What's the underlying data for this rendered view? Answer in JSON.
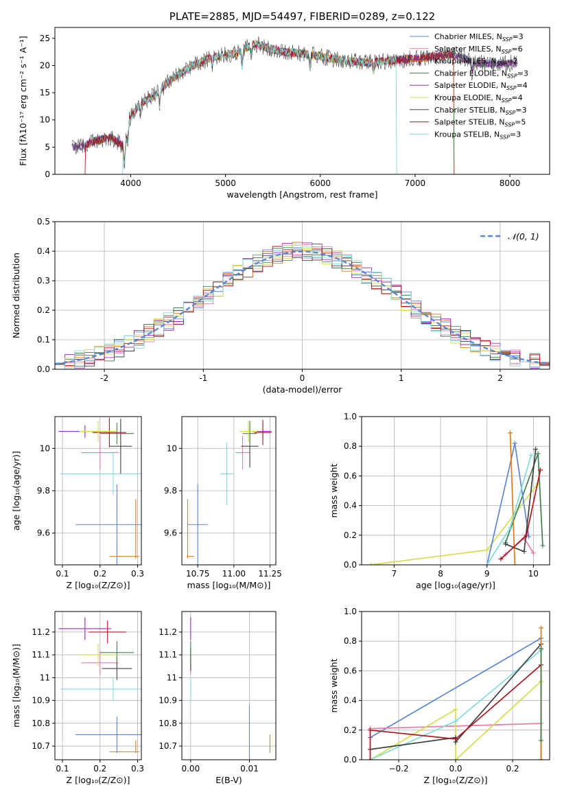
{
  "colors": {
    "chabrier_miles": "#5b86d6",
    "salpeter_miles": "#e879a8",
    "kroupa_miles": "#e07b1a",
    "chabrier_elodie": "#3f7f4f",
    "salpeter_elodie": "#9b29b5",
    "kroupa_elodie": "#d4dc4a",
    "chabrier_stelib": "#404040",
    "salpeter_stelib": "#b0141e",
    "kroupa_stelib": "#7fdcdc",
    "normal": "#5b86d6",
    "grid": "#b0b0b0"
  },
  "chart_data": [
    {
      "id": "spectrum",
      "type": "line",
      "title": "PLATE=2885, MJD=54497, FIBERID=0289, z=0.122",
      "xlabel": "wavelength [Angstrom, rest frame]",
      "ylabel": "Flux [fλ10⁻¹⁷ erg cm⁻² s⁻¹ A⁻¹]",
      "xlim": [
        3200,
        8420
      ],
      "ylim": [
        0,
        27
      ],
      "xticks": [
        4000,
        5000,
        6000,
        7000,
        8000
      ],
      "yticks": [
        0,
        5,
        10,
        15,
        20,
        25
      ],
      "grid": false,
      "legend_position": "upper-right",
      "continuum": [
        [
          3380,
          5
        ],
        [
          3500,
          5.2
        ],
        [
          3650,
          6.3
        ],
        [
          3800,
          6.8
        ],
        [
          3930,
          5
        ],
        [
          3980,
          10
        ],
        [
          4100,
          13
        ],
        [
          4250,
          14.5
        ],
        [
          4400,
          17
        ],
        [
          4600,
          19.5
        ],
        [
          4850,
          21.5
        ],
        [
          5100,
          22.2
        ],
        [
          5300,
          24
        ],
        [
          5600,
          22.5
        ],
        [
          5900,
          22
        ],
        [
          6200,
          21
        ],
        [
          6500,
          20.5
        ],
        [
          6800,
          21
        ],
        [
          7100,
          21.5
        ],
        [
          7400,
          22
        ],
        [
          7650,
          20.5
        ],
        [
          7850,
          20.2
        ],
        [
          8080,
          20.5
        ]
      ],
      "absorption_lines": [
        [
          3934,
          3.5
        ],
        [
          3969,
          3
        ],
        [
          4101,
          2
        ],
        [
          4304,
          3
        ],
        [
          4861,
          1.5
        ],
        [
          5175,
          3
        ],
        [
          5270,
          1.5
        ],
        [
          5893,
          2.5
        ],
        [
          6563,
          1.5
        ],
        [
          7050,
          1
        ],
        [
          7600,
          2
        ]
      ],
      "series": [
        {
          "name": "Chabrier MILES, N",
          "sub": "SSP",
          "suffix": "=3",
          "color_key": "chabrier_miles"
        },
        {
          "name": "Salpeter MILES, N",
          "sub": "SSP",
          "suffix": "=6",
          "color_key": "salpeter_miles"
        },
        {
          "name": "Kroupa MILES, N",
          "sub": "SSP",
          "suffix": "=2",
          "color_key": "kroupa_miles"
        },
        {
          "name": "Chabrier ELODIE, N",
          "sub": "SSP",
          "suffix": "=3",
          "color_key": "chabrier_elodie"
        },
        {
          "name": "Salpeter ELODIE, N",
          "sub": "SSP",
          "suffix": "=4",
          "color_key": "salpeter_elodie"
        },
        {
          "name": "Kroupa ELODIE, N",
          "sub": "SSP",
          "suffix": "=4",
          "color_key": "kroupa_elodie"
        },
        {
          "name": "Chabrier STELIB, N",
          "sub": "SSP",
          "suffix": "=3",
          "color_key": "chabrier_stelib"
        },
        {
          "name": "Salpeter STELIB, N",
          "sub": "SSP",
          "suffix": "=5",
          "color_key": "salpeter_stelib"
        },
        {
          "name": "Kroupa STELIB, N",
          "sub": "SSP",
          "suffix": "=3",
          "color_key": "kroupa_stelib"
        }
      ],
      "model_edges": [
        {
          "color_key": "kroupa_miles",
          "lo": 3520,
          "hi": 7410
        },
        {
          "color_key": "kroupa_elodie",
          "lo": 3920,
          "hi": 6800
        },
        {
          "color_key": "salpeter_stelib",
          "lo": 3520,
          "hi": 7410
        },
        {
          "color_key": "kroupa_stelib",
          "lo": 3920,
          "hi": 6800
        }
      ]
    },
    {
      "id": "residuals",
      "type": "histogram",
      "xlabel": "(data-model)/error",
      "ylabel": "Normed distribution",
      "xlim": [
        -2.5,
        2.5
      ],
      "ylim": [
        0,
        0.5
      ],
      "xticks": [
        -2,
        -1,
        0,
        1,
        2
      ],
      "yticks": [
        0.0,
        0.1,
        0.2,
        0.3,
        0.4,
        0.5
      ],
      "grid": true,
      "bin_width": 0.1,
      "legend": "𝒩(0, 1)",
      "legend_position": "upper-right",
      "reference": {
        "mean": 0,
        "sigma": 1
      }
    },
    {
      "id": "age-vs-Z",
      "type": "errorbar",
      "xlabel": "Z [log₁₀(Z/Z⊙)]",
      "ylabel": "age  [log₁₀(age/yr)]",
      "xlim": [
        0.08,
        0.31
      ],
      "ylim": [
        9.45,
        10.15
      ],
      "xticks": [
        0.1,
        0.2,
        0.3
      ],
      "xtick_labels": [
        "0.1",
        "0.2",
        "0.3"
      ],
      "yticks": [
        9.6,
        9.8,
        10.0
      ],
      "grid": true,
      "points": [
        {
          "color_key": "chabrier_miles",
          "x": 0.245,
          "xerr": 0.11,
          "y": 9.64,
          "yerr": 0.19
        },
        {
          "color_key": "kroupa_miles",
          "x": 0.295,
          "xlo": 0.07,
          "xhi": 0.01,
          "y": 9.49,
          "ylo": 0.01,
          "yhi": 0.27
        },
        {
          "color_key": "kroupa_stelib",
          "x": 0.235,
          "xerr": 0.14,
          "y": 9.88,
          "yerr": 0.1
        },
        {
          "color_key": "salpeter_miles",
          "x": 0.2,
          "xerr": 0.05,
          "y": 9.98,
          "yerr": 0.08
        },
        {
          "color_key": "chabrier_stelib",
          "x": 0.255,
          "xerr": 0.03,
          "y": 10.01,
          "yerr": 0.13
        },
        {
          "color_key": "chabrier_elodie",
          "x": 0.245,
          "xerr": 0.045,
          "y": 10.07,
          "yerr": 0.05
        },
        {
          "color_key": "salpeter_elodie",
          "x": 0.16,
          "xerr": 0.07,
          "y": 10.08,
          "yerr": 0.03
        },
        {
          "color_key": "salpeter_stelib",
          "x": 0.225,
          "xerr": 0.045,
          "y": 10.075,
          "yerr": 0.07
        },
        {
          "color_key": "kroupa_elodie",
          "x": 0.195,
          "xerr": 0.05,
          "y": 10.08,
          "yerr": 0.05
        }
      ]
    },
    {
      "id": "age-vs-mass",
      "type": "errorbar",
      "xlabel": "mass [log₁₀(M/M⊙)]",
      "ylabel": "",
      "xlim": [
        10.64,
        11.29
      ],
      "ylim": [
        9.45,
        10.15
      ],
      "xticks": [
        10.75,
        11.0,
        11.25
      ],
      "xtick_labels": [
        "10.75",
        "11.00",
        "11.25"
      ],
      "yticks": [
        9.6,
        9.8,
        10.0
      ],
      "grid": true,
      "points": [
        {
          "color_key": "chabrier_miles",
          "x": 10.75,
          "xerr": 0.07,
          "y": 9.64,
          "yerr": 0.19
        },
        {
          "color_key": "kroupa_miles",
          "x": 10.68,
          "xlo": 0.005,
          "xhi": 0.045,
          "y": 9.49,
          "ylo": 0.01,
          "yhi": 0.27
        },
        {
          "color_key": "kroupa_stelib",
          "x": 10.95,
          "xerr": 0.045,
          "y": 9.88,
          "yerr": 0.15
        },
        {
          "color_key": "salpeter_miles",
          "x": 11.06,
          "xerr": 0.05,
          "y": 9.98,
          "yerr": 0.08
        },
        {
          "color_key": "chabrier_stelib",
          "x": 11.11,
          "xerr": 0.06,
          "y": 10.01,
          "yerr": 0.1
        },
        {
          "color_key": "chabrier_elodie",
          "x": 11.11,
          "xerr": 0.05,
          "y": 10.07,
          "yerr": 0.06
        },
        {
          "color_key": "salpeter_elodie",
          "x": 11.2,
          "xerr": 0.06,
          "y": 10.08,
          "yerr": 0.04
        },
        {
          "color_key": "salpeter_stelib",
          "x": 11.2,
          "xerr": 0.06,
          "y": 10.075,
          "yerr": 0.06
        },
        {
          "color_key": "kroupa_elodie",
          "x": 11.1,
          "xerr": 0.06,
          "y": 10.08,
          "yerr": 0.05
        }
      ]
    },
    {
      "id": "weight-vs-age",
      "type": "line",
      "xlabel": "age  [log₁₀(age/yr)]",
      "ylabel": "mass weight",
      "xlim": [
        6.3,
        10.35
      ],
      "ylim": [
        0,
        1
      ],
      "xticks": [
        7,
        8,
        9,
        10
      ],
      "yticks": [
        0.0,
        0.2,
        0.4,
        0.6,
        0.8,
        1.0
      ],
      "grid": true,
      "lines": [
        {
          "color_key": "kroupa_elodie",
          "points": [
            [
              6.5,
              0.0
            ],
            [
              9.0,
              0.1
            ],
            [
              10.1,
              0.55
            ]
          ]
        },
        {
          "color_key": "chabrier_elodie",
          "points": [
            [
              9.4,
              0.15
            ],
            [
              10.1,
              0.75
            ],
            [
              10.2,
              0.13
            ]
          ]
        },
        {
          "color_key": "salpeter_miles",
          "points": [
            [
              9.4,
              0.07
            ],
            [
              9.8,
              0.18
            ],
            [
              10.0,
              0.08
            ]
          ]
        },
        {
          "color_key": "chabrier_miles",
          "points": [
            [
              9.0,
              0.0
            ],
            [
              9.6,
              0.82
            ],
            [
              9.9,
              0.19
            ]
          ]
        },
        {
          "color_key": "kroupa_miles",
          "points": [
            [
              9.5,
              0.89
            ],
            [
              9.6,
              0.0
            ]
          ]
        },
        {
          "color_key": "kroupa_stelib",
          "points": [
            [
              9.0,
              0.0
            ],
            [
              9.5,
              0.25
            ],
            [
              9.95,
              0.74
            ]
          ]
        },
        {
          "color_key": "chabrier_stelib",
          "points": [
            [
              9.4,
              0.14
            ],
            [
              9.8,
              0.09
            ],
            [
              10.05,
              0.78
            ]
          ]
        },
        {
          "color_key": "salpeter_stelib",
          "points": [
            [
              9.3,
              0.04
            ],
            [
              9.85,
              0.2
            ],
            [
              10.15,
              0.64
            ]
          ]
        }
      ]
    },
    {
      "id": "mass-vs-Z",
      "type": "errorbar",
      "xlabel": "Z [log₁₀(Z/Z⊙)]",
      "ylabel": "mass [log₁₀(M/M⊙)]",
      "xlim": [
        0.08,
        0.31
      ],
      "ylim": [
        10.64,
        11.29
      ],
      "xticks": [
        0.1,
        0.2,
        0.3
      ],
      "xtick_labels": [
        "0.1",
        "0.2",
        "0.3"
      ],
      "yticks": [
        10.7,
        10.8,
        10.9,
        11.0,
        11.1,
        11.2
      ],
      "grid": true,
      "points": [
        {
          "color_key": "chabrier_miles",
          "x": 0.245,
          "xerr": 0.11,
          "y": 10.75,
          "yerr": 0.08
        },
        {
          "color_key": "kroupa_miles",
          "x": 0.295,
          "xlo": 0.07,
          "xhi": 0.01,
          "y": 10.675,
          "ylo": 0.005,
          "yhi": 0.05
        },
        {
          "color_key": "kroupa_stelib",
          "x": 0.235,
          "xerr": 0.14,
          "y": 10.95,
          "yerr": 0.05
        },
        {
          "color_key": "salpeter_miles",
          "x": 0.2,
          "xerr": 0.05,
          "y": 11.065,
          "yerr": 0.05
        },
        {
          "color_key": "chabrier_stelib",
          "x": 0.245,
          "xerr": 0.04,
          "y": 11.04,
          "yerr": 0.05
        },
        {
          "color_key": "chabrier_elodie",
          "x": 0.245,
          "xerr": 0.045,
          "y": 11.11,
          "yerr": 0.05
        },
        {
          "color_key": "salpeter_elodie",
          "x": 0.16,
          "xerr": 0.07,
          "y": 11.215,
          "yerr": 0.05
        },
        {
          "color_key": "salpeter_stelib",
          "x": 0.22,
          "xerr": 0.05,
          "y": 11.2,
          "yerr": 0.05
        },
        {
          "color_key": "kroupa_elodie",
          "x": 0.195,
          "xerr": 0.05,
          "y": 11.1,
          "yerr": 0.05
        }
      ]
    },
    {
      "id": "mass-vs-ebv",
      "type": "errorbar",
      "xlabel": "E(B-V)",
      "ylabel": "",
      "xlim": [
        -0.0015,
        0.0145
      ],
      "ylim": [
        10.64,
        11.29
      ],
      "xticks": [
        0.0,
        0.01
      ],
      "xtick_labels": [
        "0.00",
        "0.01"
      ],
      "yticks": [
        10.7,
        10.8,
        10.9,
        11.0,
        11.1,
        11.2
      ],
      "grid": true,
      "points": [
        {
          "color_key": "chabrier_miles",
          "x": 0.01,
          "xerr": 0,
          "y": 10.75,
          "yerr": 0.13
        },
        {
          "color_key": "kroupa_miles",
          "x": 0.0135,
          "xerr": 0,
          "y": 10.71,
          "yerr": 0.04
        },
        {
          "color_key": "kroupa_stelib",
          "x": 0.0,
          "xerr": 0,
          "y": 10.95,
          "yerr": 0.05
        },
        {
          "color_key": "salpeter_miles",
          "x": 0.0,
          "xerr": 0,
          "y": 11.065,
          "yerr": 0.05
        },
        {
          "color_key": "chabrier_stelib",
          "x": 0.0,
          "xerr": 0,
          "y": 11.08,
          "yerr": 0.05
        },
        {
          "color_key": "salpeter_elodie",
          "x": 0.0,
          "xerr": 0,
          "y": 11.215,
          "yerr": 0.05
        },
        {
          "color_key": "chabrier_elodie",
          "x": 0.0,
          "xerr": 0,
          "y": 11.11,
          "yerr": 0.05
        }
      ]
    },
    {
      "id": "weight-vs-Z",
      "type": "line",
      "xlabel": "Z [log₁₀(Z/Z⊙)]",
      "ylabel": "mass weight",
      "xlim": [
        -0.33,
        0.33
      ],
      "ylim": [
        0,
        1
      ],
      "xticks": [
        -0.2,
        0.0,
        0.2
      ],
      "xtick_labels": [
        "−0.2",
        "0.0",
        "0.2"
      ],
      "yticks": [
        0.0,
        0.2,
        0.4,
        0.6,
        0.8,
        1.0
      ],
      "grid": true,
      "lines": [
        {
          "color_key": "chabrier_miles",
          "points": [
            [
              -0.3,
              0.15
            ],
            [
              0.3,
              0.82
            ]
          ]
        },
        {
          "color_key": "salpeter_miles",
          "points": [
            [
              -0.3,
              0.21
            ],
            [
              0.3,
              0.245
            ]
          ]
        },
        {
          "color_key": "kroupa_elodie",
          "points": [
            [
              -0.3,
              0.0
            ],
            [
              0.0,
              0.34
            ],
            [
              0.0,
              0.0
            ],
            [
              0.3,
              0.53
            ]
          ]
        },
        {
          "color_key": "kroupa_stelib",
          "points": [
            [
              -0.3,
              0.0
            ],
            [
              0.0,
              0.26
            ],
            [
              0.3,
              0.74
            ]
          ]
        },
        {
          "color_key": "chabrier_stelib",
          "points": [
            [
              -0.3,
              0.07
            ],
            [
              0.0,
              0.15
            ],
            [
              0.0,
              0.12
            ],
            [
              0.3,
              0.78
            ]
          ]
        },
        {
          "color_key": "salpeter_stelib",
          "points": [
            [
              -0.3,
              0.0
            ],
            [
              -0.3,
              0.2
            ],
            [
              0.0,
              0.14
            ],
            [
              0.3,
              0.64
            ],
            [
              0.3,
              0.0
            ]
          ]
        },
        {
          "color_key": "kroupa_miles",
          "points": [
            [
              0.3,
              0.89
            ],
            [
              0.3,
              0.0
            ]
          ]
        },
        {
          "color_key": "chabrier_elodie",
          "points": [
            [
              0.3,
              0.75
            ],
            [
              0.3,
              0.13
            ]
          ]
        }
      ]
    }
  ]
}
